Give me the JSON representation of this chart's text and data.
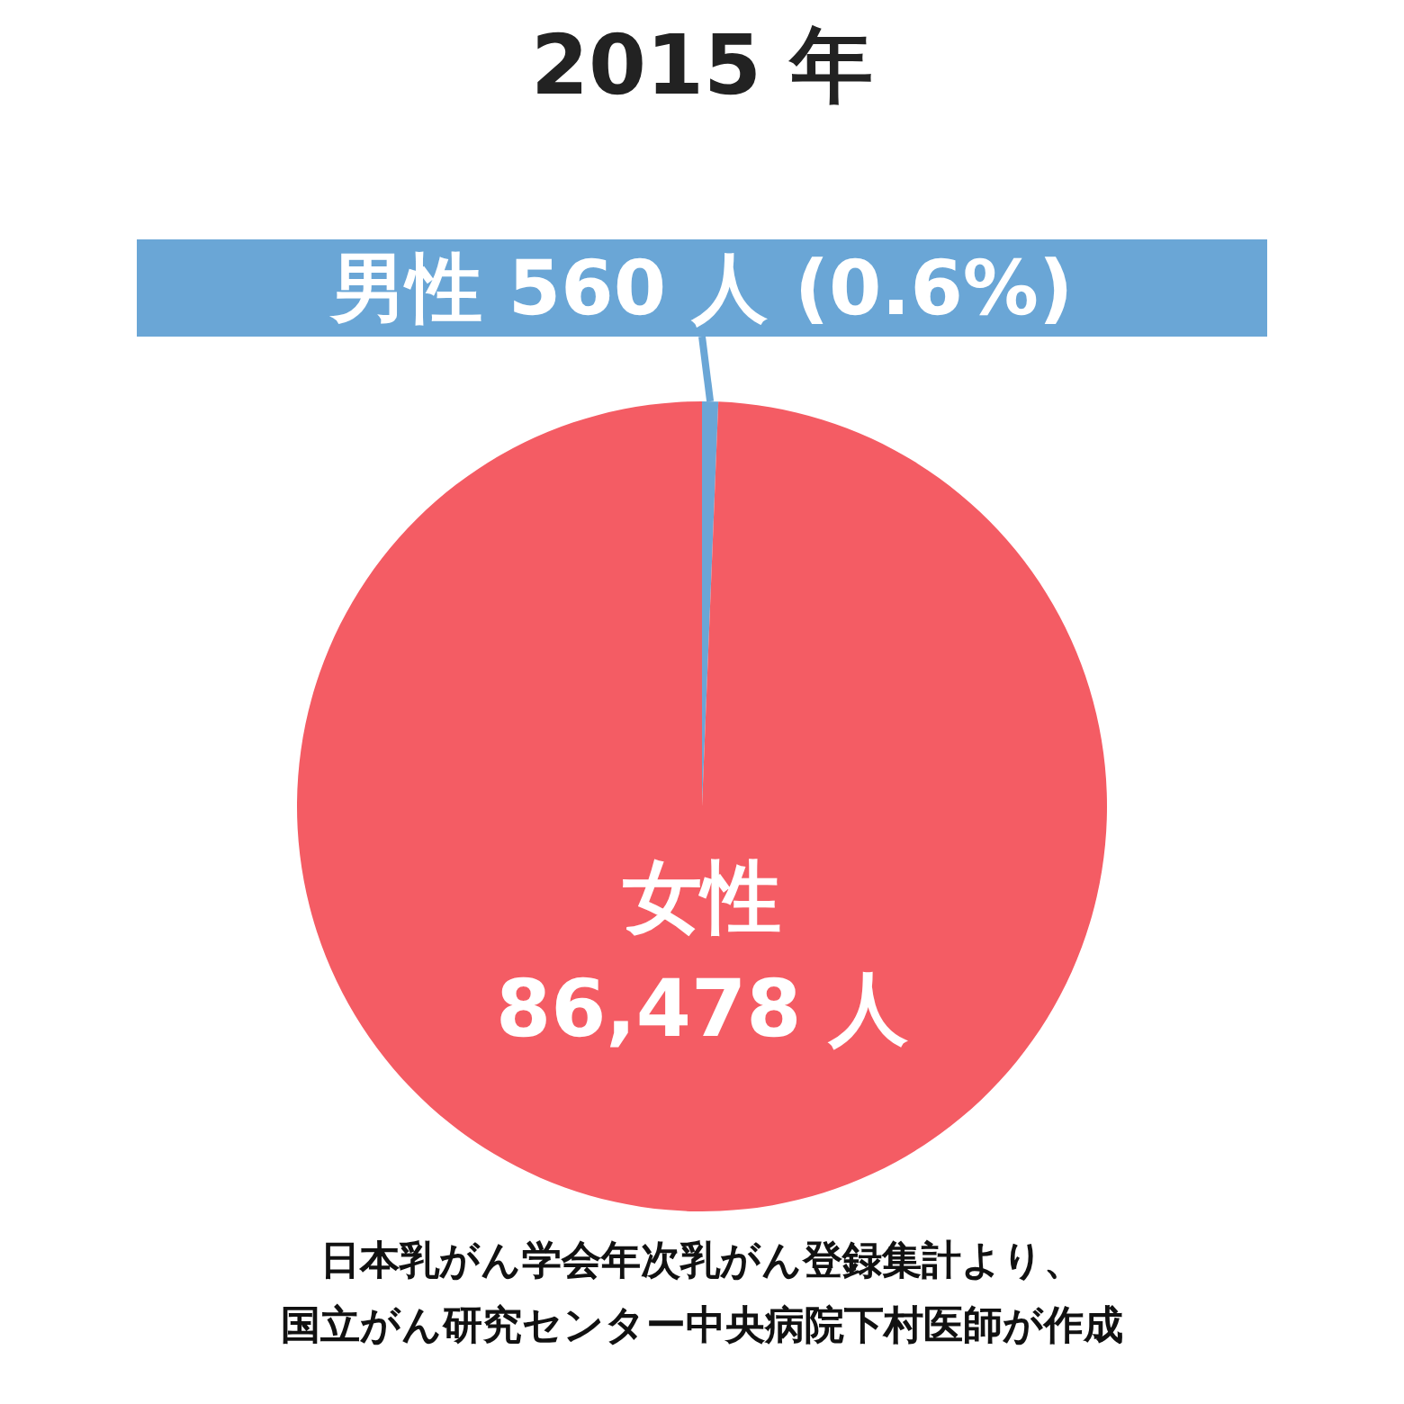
{
  "chart_data": {
    "type": "pie",
    "title": "2015 年",
    "categories": [
      "男性",
      "女性"
    ],
    "values": [
      560,
      86478
    ],
    "colors": [
      "#6aa6d6",
      "#f45c64"
    ],
    "value_labels": [
      "560 人 (0.6%)",
      "86,478 人"
    ],
    "annotations": [
      "日本乳がん学会年次乳がん登録集計より、",
      "国立がん研究センター中央病院下村医師が作成"
    ]
  }
}
